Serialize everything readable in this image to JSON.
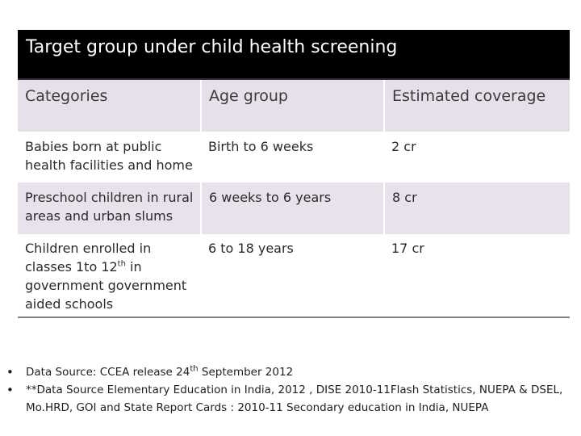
{
  "title": "Target group under child health screening",
  "table": {
    "headers": [
      "Categories",
      "Age group",
      "Estimated coverage"
    ],
    "rows": [
      {
        "category": "Babies born at public health facilities and home",
        "age": "Birth to 6 weeks",
        "coverage": "2 cr"
      },
      {
        "category": "Preschool children in rural areas and urban slums",
        "age": "6 weeks to 6 years",
        "coverage": "8 cr"
      },
      {
        "category_pre": "Children enrolled in classes 1to 12",
        "category_sup": "th",
        "category_post": " in government government aided schools",
        "age": "6 to 18 years",
        "coverage": "17 cr"
      }
    ]
  },
  "notes": {
    "bullet": "•",
    "n1_pre": "Data Source: CCEA release 24",
    "n1_sup": "th",
    "n1_post": " September 2012",
    "n2": "**Data Source Elementary Education in India, 2012 , DISE 2010-11Flash Statistics, NUEPA & DSEL, Mo.HRD, GOI and State Report Cards : 2010-11 Secondary education in India, NUEPA"
  }
}
